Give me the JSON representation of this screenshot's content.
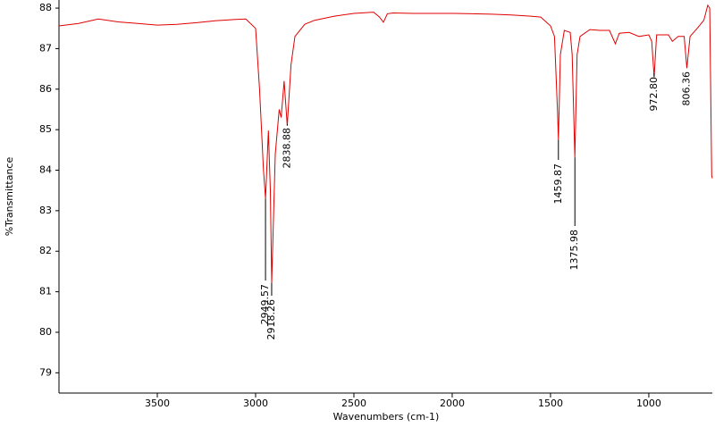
{
  "chart_data": {
    "type": "line",
    "xlabel": "Wavenumbers (cm-1)",
    "ylabel": "%Transmittance",
    "color": "#e00000",
    "xlim": [
      4000,
      677
    ],
    "ylim": [
      78.5,
      88.2
    ],
    "xticks": [
      3500,
      3000,
      2500,
      2000,
      1500,
      1000
    ],
    "yticks": [
      79,
      80,
      81,
      82,
      83,
      84,
      85,
      86,
      87,
      88
    ],
    "x": [
      4000,
      3900,
      3800,
      3700,
      3600,
      3500,
      3400,
      3300,
      3200,
      3100,
      3050,
      3000,
      2980,
      2960,
      2949.57,
      2935,
      2925,
      2918.26,
      2900,
      2880,
      2870,
      2855,
      2838.88,
      2820,
      2800,
      2750,
      2700,
      2600,
      2500,
      2400,
      2370,
      2350,
      2330,
      2300,
      2200,
      2100,
      2000,
      1900,
      1800,
      1700,
      1600,
      1550,
      1500,
      1480,
      1465,
      1459.87,
      1450,
      1430,
      1400,
      1390,
      1375.98,
      1365,
      1350,
      1300,
      1250,
      1200,
      1170,
      1150,
      1100,
      1050,
      1000,
      985,
      972.8,
      960,
      900,
      880,
      850,
      820,
      806.36,
      790,
      750,
      720,
      700,
      690,
      680,
      677
    ],
    "values": [
      87.56,
      87.62,
      87.73,
      87.66,
      87.62,
      87.58,
      87.6,
      87.64,
      87.69,
      87.72,
      87.73,
      87.5,
      86.0,
      84.0,
      83.3,
      84.98,
      83.5,
      81.22,
      84.4,
      85.5,
      85.3,
      86.2,
      85.1,
      86.6,
      87.3,
      87.6,
      87.7,
      87.8,
      87.87,
      87.9,
      87.78,
      87.65,
      87.86,
      87.88,
      87.87,
      87.87,
      87.87,
      87.86,
      87.85,
      87.83,
      87.8,
      87.78,
      87.56,
      87.3,
      85.5,
      84.75,
      86.85,
      87.45,
      87.4,
      86.85,
      84.31,
      86.85,
      87.3,
      87.47,
      87.45,
      87.45,
      87.12,
      87.38,
      87.4,
      87.3,
      87.34,
      87.18,
      86.3,
      87.34,
      87.34,
      87.18,
      87.3,
      87.3,
      86.52,
      87.3,
      87.52,
      87.7,
      88.07,
      88.0,
      83.87,
      83.8
    ],
    "peaks": [
      {
        "value": 2949.57,
        "label": "2949.57",
        "y": 83.3
      },
      {
        "value": 2918.26,
        "label": "2918.26",
        "y": 81.22
      },
      {
        "value": 2838.88,
        "label": "2838.88",
        "y": 85.1
      },
      {
        "value": 1459.87,
        "label": "1459.87",
        "y": 84.75
      },
      {
        "value": 1375.98,
        "label": "1375.98",
        "y": 84.31
      },
      {
        "value": 972.8,
        "label": "972.80",
        "y": 86.3
      },
      {
        "value": 806.36,
        "label": "806.36",
        "y": 86.52
      }
    ]
  }
}
